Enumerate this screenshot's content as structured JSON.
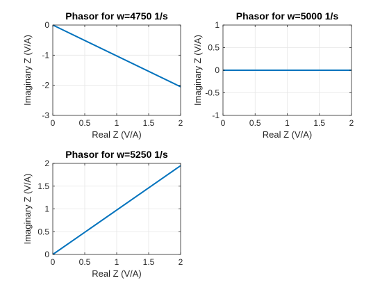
{
  "chart_data": [
    {
      "type": "line",
      "title": "Phasor for w=4750 1/s",
      "xlabel": "Real Z (V/A)",
      "ylabel": "Imaginary Z (V/A)",
      "xlim": [
        0,
        2
      ],
      "ylim": [
        -3,
        0
      ],
      "xticks": [
        "0",
        "0.5",
        "1",
        "1.5",
        "2"
      ],
      "yticks": [
        "-3",
        "-2",
        "-1",
        "0"
      ],
      "grid": true,
      "series": [
        {
          "x": [
            0,
            2
          ],
          "y": [
            0,
            -2.05
          ],
          "color": "#0072BD"
        }
      ]
    },
    {
      "type": "line",
      "title": "Phasor for w=5000 1/s",
      "xlabel": "Real Z (V/A)",
      "ylabel": "Imaginary Z (V/A)",
      "xlim": [
        0,
        2
      ],
      "ylim": [
        -1,
        1
      ],
      "xticks": [
        "0",
        "0.5",
        "1",
        "1.5",
        "2"
      ],
      "yticks": [
        "-1",
        "-0.5",
        "0",
        "0.5",
        "1"
      ],
      "grid": true,
      "series": [
        {
          "x": [
            0,
            2
          ],
          "y": [
            0,
            0
          ],
          "color": "#0072BD"
        }
      ]
    },
    {
      "type": "line",
      "title": "Phasor for w=5250 1/s",
      "xlabel": "Real Z (V/A)",
      "ylabel": "Imaginary Z (V/A)",
      "xlim": [
        0,
        2
      ],
      "ylim": [
        0,
        2
      ],
      "xticks": [
        "0",
        "0.5",
        "1",
        "1.5",
        "2"
      ],
      "yticks": [
        "0",
        "0.5",
        "1",
        "1.5",
        "2"
      ],
      "grid": true,
      "series": [
        {
          "x": [
            0,
            2
          ],
          "y": [
            0,
            1.95
          ],
          "color": "#0072BD"
        }
      ]
    }
  ]
}
